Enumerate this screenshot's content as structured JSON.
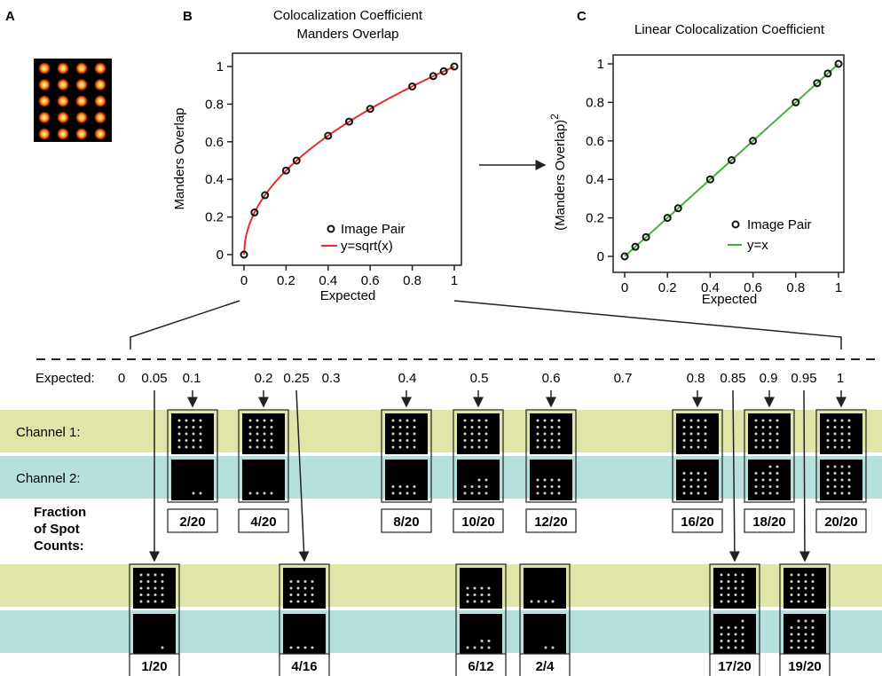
{
  "panel_labels": {
    "a": "A",
    "b": "B",
    "c": "C"
  },
  "chart_data": [
    {
      "type": "scatter",
      "title": "Colocalization Coefficient",
      "subtitle": "Manders Overlap",
      "xlabel": "Expected",
      "ylabel": "Manders Overlap",
      "xlim": [
        0,
        1
      ],
      "ylim": [
        0,
        1
      ],
      "xticks": [
        "0",
        "0.2",
        "0.4",
        "0.6",
        "0.8",
        "1"
      ],
      "yticks": [
        "0",
        "0.2",
        "0.4",
        "0.6",
        "0.8",
        "1"
      ],
      "legend": {
        "placement": "bottom-right",
        "points_label": "Image Pair",
        "line_label": "y=sqrt(x)"
      },
      "line_color": "#e03030",
      "series": [
        {
          "name": "Image Pair",
          "x": [
            0,
            0.05,
            0.1,
            0.2,
            0.25,
            0.4,
            0.5,
            0.6,
            0.8,
            0.9,
            0.95,
            1
          ],
          "y": [
            0,
            0.224,
            0.316,
            0.447,
            0.5,
            0.632,
            0.707,
            0.775,
            0.894,
            0.949,
            0.975,
            1
          ]
        }
      ]
    },
    {
      "type": "scatter",
      "title": "Linear Colocalization Coefficient",
      "xlabel": "Expected",
      "ylabel": "(Manders Overlap)",
      "ylabel_sup": "2",
      "xlim": [
        0,
        1
      ],
      "ylim": [
        0,
        1
      ],
      "xticks": [
        "0",
        "0.2",
        "0.4",
        "0.6",
        "0.8",
        "1"
      ],
      "yticks": [
        "0",
        "0.2",
        "0.4",
        "0.6",
        "0.8",
        "1"
      ],
      "legend": {
        "placement": "bottom-right",
        "points_label": "Image Pair",
        "line_label": "y=x"
      },
      "line_color": "#44b044",
      "series": [
        {
          "name": "Image Pair",
          "x": [
            0,
            0.05,
            0.1,
            0.2,
            0.25,
            0.4,
            0.5,
            0.6,
            0.8,
            0.9,
            0.95,
            1
          ],
          "y": [
            0,
            0.05,
            0.1,
            0.2,
            0.25,
            0.4,
            0.5,
            0.6,
            0.8,
            0.9,
            0.95,
            1
          ]
        }
      ]
    }
  ],
  "scale": {
    "prefix": "Expected:",
    "values": [
      "0",
      "0.05",
      "0.1",
      "0.2",
      "0.25",
      "0.3",
      "0.4",
      "0.5",
      "0.6",
      "0.7",
      "0.8",
      "0.85",
      "0.9",
      "0.95",
      "1"
    ]
  },
  "channel_labels": {
    "ch1": "Channel 1:",
    "ch2": "Channel 2:"
  },
  "fraction_label": [
    "Fraction",
    "of Spot",
    "Counts:"
  ],
  "top_pairs": [
    {
      "expected": 0.1,
      "ch1": 20,
      "ch2": 2,
      "fraction": "2/20"
    },
    {
      "expected": 0.2,
      "ch1": 20,
      "ch2": 4,
      "fraction": "4/20"
    },
    {
      "expected": 0.4,
      "ch1": 20,
      "ch2": 8,
      "fraction": "8/20"
    },
    {
      "expected": 0.5,
      "ch1": 20,
      "ch2": 10,
      "fraction": "10/20"
    },
    {
      "expected": 0.6,
      "ch1": 20,
      "ch2": 12,
      "fraction": "12/20"
    },
    {
      "expected": 0.8,
      "ch1": 20,
      "ch2": 16,
      "fraction": "16/20"
    },
    {
      "expected": 0.9,
      "ch1": 20,
      "ch2": 18,
      "fraction": "18/20"
    },
    {
      "expected": 1,
      "ch1": 20,
      "ch2": 20,
      "fraction": "20/20"
    }
  ],
  "bottom_pairs": [
    {
      "expected": 0.05,
      "ch1": 20,
      "ch2": 1,
      "fraction": "1/20"
    },
    {
      "expected": 0.25,
      "ch1": 16,
      "ch2": 4,
      "fraction": "4/16"
    },
    {
      "expected": 0.5,
      "ch1": 12,
      "ch2": 6,
      "fraction": "6/12"
    },
    {
      "expected": 0.5,
      "ch1": 4,
      "ch2": 2,
      "fraction": "2/4"
    },
    {
      "expected": 0.85,
      "ch1": 20,
      "ch2": 17,
      "fraction": "17/20"
    },
    {
      "expected": 0.95,
      "ch1": 20,
      "ch2": 19,
      "fraction": "19/20"
    }
  ],
  "colors": {
    "channel1_band": "#dfe6a8",
    "channel2_band": "#b6e0dc",
    "spot_core": "#ffe070",
    "spot_edge": "#d83800"
  }
}
